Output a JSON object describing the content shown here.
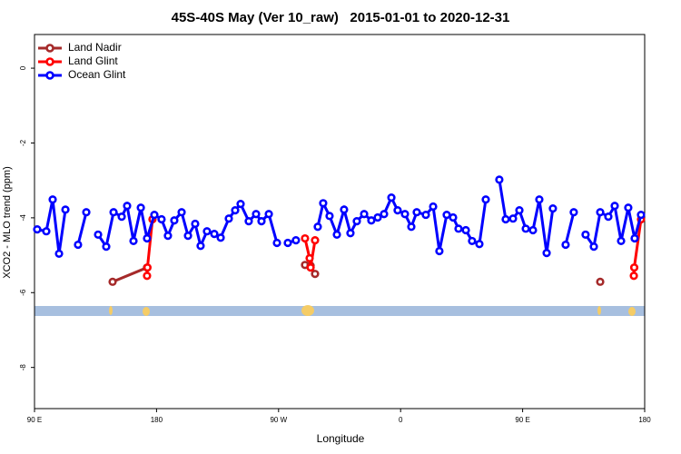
{
  "chart_data": {
    "type": "line",
    "title": "45S-40S May (Ver 10_raw)   2015-01-01 to 2020-12-31",
    "x_label": "Longitude",
    "y_label": "XCO2 - MLO trend (ppm)",
    "xlim": [
      90,
      540
    ],
    "xticks": [
      {
        "value": 90,
        "label": "90 E"
      },
      180,
      {
        "value": 270,
        "label": "90 W"
      },
      {
        "value": 360,
        "label": "0"
      },
      {
        "value": 450,
        "label": "90 E"
      },
      {
        "value": 540,
        "label": "180"
      }
    ],
    "ylim": [
      -9.1,
      0.9
    ],
    "yticks": [
      0,
      -2,
      -4,
      -6,
      -8
    ],
    "legend": "top-left",
    "series": [
      {
        "name": "Land Nadir",
        "color": "#a52a2a",
        "x": [
          147.6,
          173.0,
          250,
          289.5,
          293.6,
          296.9,
          400,
          507.2
        ],
        "values": [
          -5.71,
          -5.33,
          null,
          -5.26,
          -5.28,
          -5.5,
          null,
          -5.71
        ]
      },
      {
        "name": "Land Glint",
        "color": "#ff0000",
        "x": [
          173.0,
          173.3,
          177.0,
          250,
          289.5,
          292.9,
          293.6,
          296.9,
          400,
          532.0,
          532.3,
          537.3
        ],
        "values": [
          -5.55,
          -5.33,
          -4.04,
          null,
          -4.55,
          -5.08,
          -5.33,
          -4.6,
          null,
          -5.55,
          -5.33,
          -4.04
        ]
      },
      {
        "name": "Ocean Glint",
        "color": "#0000ff",
        "x": [
          92.0,
          98.7,
          103.4,
          108.1,
          112.8,
          117.5,
          122.1,
          128.2,
          132.5,
          136.9,
          142.9,
          148.3,
          154.3,
          158.3,
          163.0,
          168.4,
          173.0,
          178.4,
          183.7,
          188.4,
          193.1,
          198.5,
          203.2,
          208.5,
          212.5,
          217.2,
          222.6,
          227.3,
          233.3,
          238.0,
          242.0,
          248.0,
          253.4,
          257.4,
          262.8,
          268.8,
          272.8,
          276.8,
          282.8,
          290.9,
          298.9,
          302.9,
          307.6,
          313.0,
          318.3,
          323.0,
          327.7,
          333.1,
          338.4,
          343.1,
          347.8,
          353.2,
          357.8,
          363.2,
          367.9,
          371.9,
          378.6,
          384.0,
          388.6,
          394.0,
          398.7,
          402.7,
          408.1,
          412.7,
          418.1,
          422.8,
          427.5,
          432.8,
          437.5,
          442.9,
          447.6,
          452.3,
          457.6,
          462.3,
          467.7,
          472.3,
          477.0,
          481.7,
          487.7,
          491.8,
          496.4,
          502.5,
          507.2,
          513.2,
          517.9,
          522.6,
          527.9,
          532.6,
          537.3
        ],
        "values": [
          -4.31,
          -4.36,
          -3.51,
          -4.96,
          -3.78,
          null,
          -4.72,
          -3.85,
          null,
          -4.45,
          -4.77,
          -3.85,
          -3.97,
          -3.68,
          -4.62,
          -3.73,
          -4.55,
          -3.92,
          -4.04,
          -4.48,
          -4.07,
          -3.85,
          -4.48,
          -4.16,
          -4.75,
          -4.36,
          -4.43,
          -4.53,
          -4.02,
          -3.8,
          -3.63,
          -4.09,
          -3.9,
          -4.09,
          -3.9,
          -4.67,
          null,
          -4.67,
          -4.6,
          null,
          -4.24,
          -3.61,
          -3.95,
          -4.45,
          -3.78,
          -4.41,
          -4.09,
          -3.9,
          -4.07,
          -3.99,
          -3.9,
          -3.46,
          -3.8,
          -3.9,
          -4.24,
          -3.85,
          -3.92,
          -3.7,
          -4.89,
          -3.92,
          -3.99,
          -4.29,
          -4.33,
          -4.62,
          -4.7,
          -3.51,
          null,
          -2.98,
          -4.04,
          -4.02,
          -3.8,
          -4.29,
          -4.33,
          -3.51,
          -4.94,
          -3.75,
          null,
          -4.72,
          -3.85,
          null,
          -4.45,
          -4.77,
          -3.85,
          -3.97,
          -3.68,
          -4.62,
          -3.73,
          -4.55,
          -3.92
        ]
      }
    ]
  }
}
